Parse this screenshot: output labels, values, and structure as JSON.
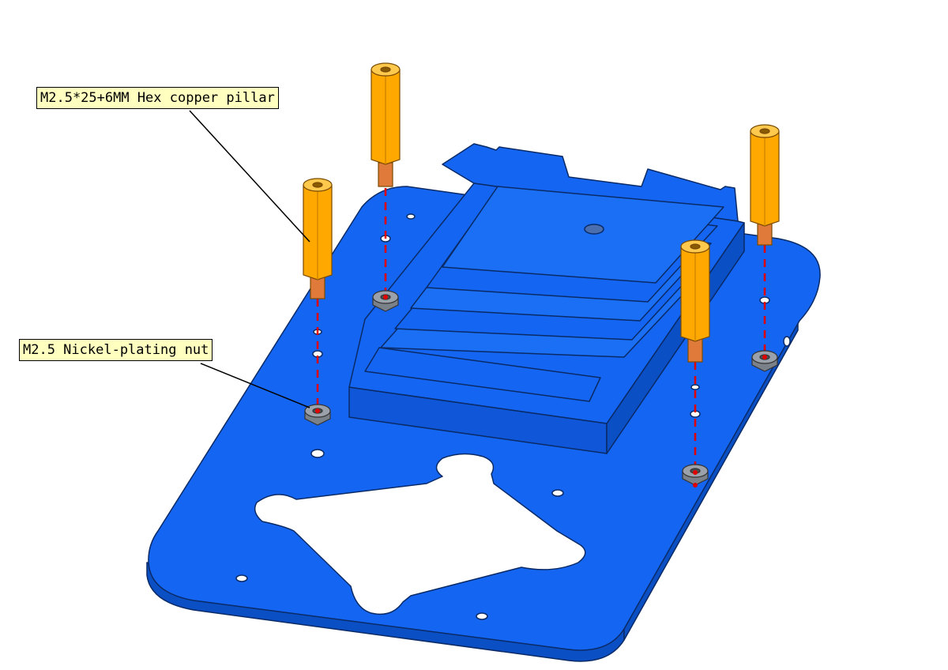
{
  "callouts": {
    "pillar": "M2.5*25+6MM Hex copper pillar",
    "nut": "M2.5 Nickel-plating nut"
  },
  "colors": {
    "plate": "#1466f2",
    "plate_side": "#0b4fc4",
    "pillar": "#ffa800",
    "nut": "#7b8189",
    "guide": "#e00000",
    "callout_bg": "#ffffc0"
  },
  "icons": [
    "hex-pillar-icon",
    "hex-nut-icon",
    "screw-icon"
  ]
}
